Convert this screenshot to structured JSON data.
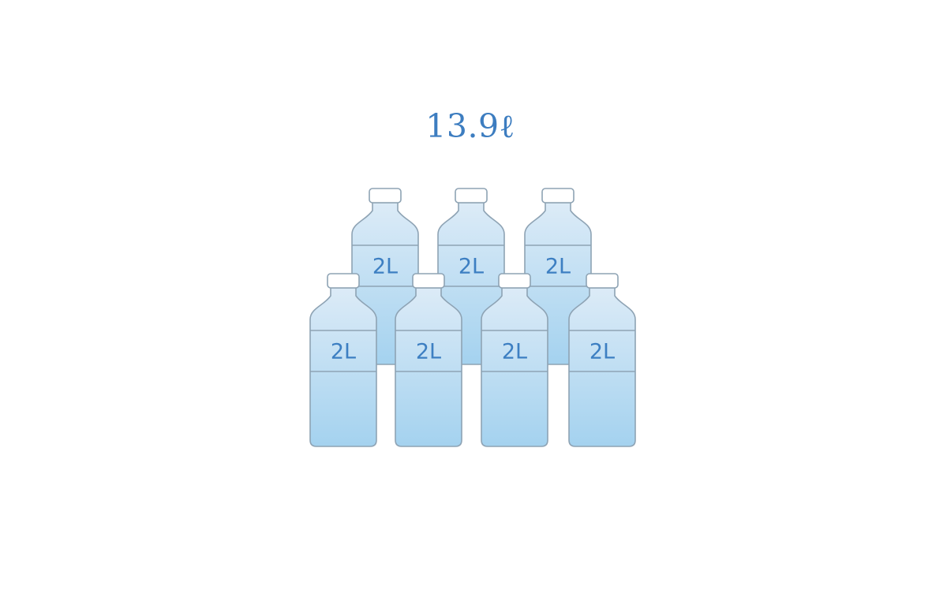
{
  "total_volume": "13.9ℓ",
  "colors": {
    "accent_text": "#3d7dc0",
    "bottle_top": "#dcebf7",
    "bottle_bottom": "#a4d2ef",
    "bottle_outline": "#8ea3b4",
    "cap": "#ffffff"
  },
  "bottles": [
    {
      "label": "2L",
      "row": "back"
    },
    {
      "label": "2L",
      "row": "back"
    },
    {
      "label": "2L",
      "row": "back"
    },
    {
      "label": "2L",
      "row": "front"
    },
    {
      "label": "2L",
      "row": "front"
    },
    {
      "label": "2L",
      "row": "front"
    },
    {
      "label": "2L",
      "row": "front"
    }
  ]
}
